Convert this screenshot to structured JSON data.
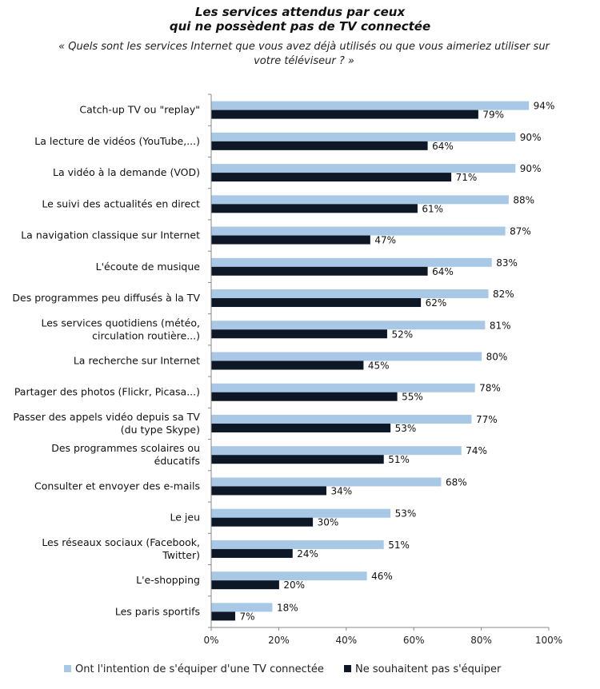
{
  "title_line1": "Les services attendus par ceux",
  "title_line2": "qui ne possèdent pas de TV connectée",
  "subtitle": "« Quels sont les services Internet que vous avez déjà utilisés ou que vous aimeriez utiliser sur votre téléviseur ? »",
  "colors": {
    "series1": "#a9c8e6",
    "series2": "#0d1726"
  },
  "chart_data": {
    "type": "bar",
    "orientation": "horizontal",
    "xlim": [
      0,
      100
    ],
    "xticks": [
      "0%",
      "20%",
      "40%",
      "60%",
      "80%",
      "100%"
    ],
    "categories": [
      [
        "Catch-up TV ou \"replay\""
      ],
      [
        "La lecture de vidéos (YouTube,...)"
      ],
      [
        "La vidéo à la demande (VOD)"
      ],
      [
        "Le suivi des actualités en direct"
      ],
      [
        "La navigation classique sur Internet"
      ],
      [
        "L'écoute de musique"
      ],
      [
        "Des programmes peu diffusés à la TV"
      ],
      [
        "Les services quotidiens (météo,",
        "circulation routière...)"
      ],
      [
        "La recherche sur Internet"
      ],
      [
        "Partager des photos (Flickr, Picasa...)"
      ],
      [
        "Passer des appels vidéo depuis sa TV",
        "(du type Skype)"
      ],
      [
        "Des programmes scolaires ou",
        "éducatifs"
      ],
      [
        "Consulter et envoyer des e-mails"
      ],
      [
        "Le jeu"
      ],
      [
        "Les réseaux sociaux (Facebook,",
        "Twitter)"
      ],
      [
        "L'e-shopping"
      ],
      [
        "Les paris sportifs"
      ]
    ],
    "series": [
      {
        "name": "Ont l'intention de s'équiper d'une TV connectée",
        "values": [
          94,
          90,
          90,
          88,
          87,
          83,
          82,
          81,
          80,
          78,
          77,
          74,
          68,
          53,
          51,
          46,
          18
        ]
      },
      {
        "name": "Ne souhaitent pas s'équiper",
        "values": [
          79,
          64,
          71,
          61,
          47,
          64,
          62,
          52,
          45,
          55,
          53,
          51,
          34,
          30,
          24,
          20,
          7
        ]
      }
    ],
    "legend": "bottom"
  }
}
